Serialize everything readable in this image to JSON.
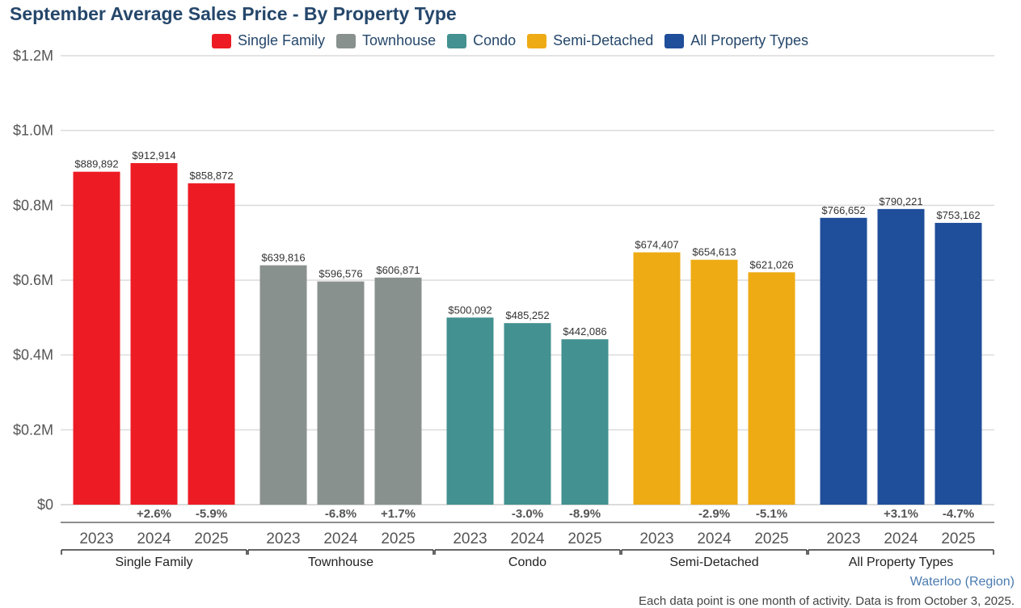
{
  "chart_data": {
    "type": "bar",
    "title": "September Average Sales Price - By Property Type",
    "xlabel": "",
    "ylabel": "",
    "ylim": [
      0,
      1200000
    ],
    "y_ticks": [
      {
        "value": 0,
        "label": "$0"
      },
      {
        "value": 200000,
        "label": "$0.2M"
      },
      {
        "value": 400000,
        "label": "$0.4M"
      },
      {
        "value": 600000,
        "label": "$0.6M"
      },
      {
        "value": 800000,
        "label": "$0.8M"
      },
      {
        "value": 1000000,
        "label": "$1.0M"
      },
      {
        "value": 1200000,
        "label": "$1.2M"
      }
    ],
    "grid": true,
    "legend_position": "top",
    "years": [
      "2023",
      "2024",
      "2025"
    ],
    "groups": [
      {
        "name": "Single Family",
        "color": "#ed1c24",
        "values": [
          889892,
          912914,
          858872
        ],
        "value_labels": [
          "$889,892",
          "$912,914",
          "$858,872"
        ],
        "changes": [
          "",
          "+2.6%",
          "-5.9%"
        ]
      },
      {
        "name": "Townhouse",
        "color": "#89918f",
        "values": [
          639816,
          596576,
          606871
        ],
        "value_labels": [
          "$639,816",
          "$596,576",
          "$606,871"
        ],
        "changes": [
          "",
          "-6.8%",
          "+1.7%"
        ]
      },
      {
        "name": "Condo",
        "color": "#439190",
        "values": [
          500092,
          485252,
          442086
        ],
        "value_labels": [
          "$500,092",
          "$485,252",
          "$442,086"
        ],
        "changes": [
          "",
          "-3.0%",
          "-8.9%"
        ]
      },
      {
        "name": "Semi-Detached",
        "color": "#eeab14",
        "values": [
          674407,
          654613,
          621026
        ],
        "value_labels": [
          "$674,407",
          "$654,613",
          "$621,026"
        ],
        "changes": [
          "",
          "-2.9%",
          "-5.1%"
        ]
      },
      {
        "name": "All Property Types",
        "color": "#1f4e9a",
        "values": [
          766652,
          790221,
          753162
        ],
        "value_labels": [
          "$766,652",
          "$790,221",
          "$753,162"
        ],
        "changes": [
          "",
          "+3.1%",
          "-4.7%"
        ]
      }
    ]
  },
  "legend": [
    {
      "label": "Single Family",
      "color": "#ed1c24"
    },
    {
      "label": "Townhouse",
      "color": "#89918f"
    },
    {
      "label": "Condo",
      "color": "#439190"
    },
    {
      "label": "Semi-Detached",
      "color": "#eeab14"
    },
    {
      "label": "All Property Types",
      "color": "#1f4e9a"
    }
  ],
  "source": "Waterloo (Region)",
  "footnote": "Each data point is one month of activity. Data is from October 3, 2025."
}
